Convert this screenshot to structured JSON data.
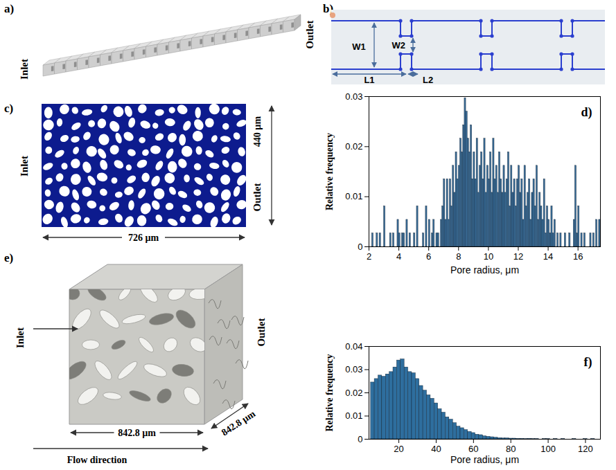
{
  "panels": {
    "a": {
      "letter": "a)",
      "inlet": "Inlet",
      "outlet": "Outlet"
    },
    "b": {
      "letter": "b)",
      "labels": [
        "W1",
        "W2",
        "L1",
        "L2"
      ]
    },
    "c": {
      "letter": "c)",
      "inlet": "Inlet",
      "outlet": "Outlet",
      "height_label": "440 µm",
      "width_label": "726 µm"
    },
    "d": {
      "letter": "d)"
    },
    "e": {
      "letter": "e)",
      "inlet": "Inlet",
      "outlet": "Outlet",
      "width_label": "842.8 µm",
      "depth_label": "842.8 µm",
      "flow": "Flow direction"
    },
    "f": {
      "letter": "f)"
    }
  },
  "chart_data": [
    {
      "type": "histogram",
      "xlabel": "Pore radius, μm",
      "ylabel": "Relative frequency",
      "color": "#3a6e9a",
      "xlim": [
        2,
        17.5
      ],
      "ylim": [
        0,
        0.03
      ],
      "xticks": [
        2,
        4,
        6,
        8,
        10,
        12,
        14,
        16
      ],
      "yticks": [
        0,
        0.01,
        0.02,
        0.03
      ],
      "bins": [
        2,
        2.1,
        2.2,
        2.3,
        2.4,
        2.5,
        2.6,
        2.7,
        2.8,
        2.9,
        3,
        3.1,
        3.2,
        3.3,
        3.4,
        3.5,
        3.6,
        3.7,
        3.8,
        3.9,
        4,
        4.1,
        4.2,
        4.3,
        4.4,
        4.5,
        4.6,
        4.7,
        4.8,
        4.9,
        5,
        5.1,
        5.2,
        5.3,
        5.4,
        5.5,
        5.6,
        5.7,
        5.8,
        5.9,
        6,
        6.1,
        6.2,
        6.3,
        6.4,
        6.5,
        6.6,
        6.7,
        6.8,
        6.9,
        7,
        7.1,
        7.2,
        7.3,
        7.4,
        7.5,
        7.6,
        7.7,
        7.8,
        7.9,
        8,
        8.1,
        8.2,
        8.3,
        8.4,
        8.5,
        8.6,
        8.7,
        8.8,
        8.9,
        9,
        9.1,
        9.2,
        9.3,
        9.4,
        9.5,
        9.6,
        9.7,
        9.8,
        9.9,
        10,
        10.1,
        10.2,
        10.3,
        10.4,
        10.5,
        10.6,
        10.7,
        10.8,
        10.9,
        11,
        11.1,
        11.2,
        11.3,
        11.4,
        11.5,
        11.6,
        11.7,
        11.8,
        11.9,
        12,
        12.1,
        12.2,
        12.3,
        12.4,
        12.5,
        12.6,
        12.7,
        12.8,
        12.9,
        13,
        13.1,
        13.2,
        13.3,
        13.4,
        13.5,
        13.6,
        13.7,
        13.8,
        13.9,
        14,
        14.1,
        14.2,
        14.3,
        14.4,
        14.5,
        14.6,
        14.7,
        14.8,
        14.9,
        15,
        15.1,
        15.2,
        15.3,
        15.4,
        15.5,
        15.6,
        15.7,
        15.8,
        15.9,
        16,
        16.1,
        16.2,
        16.3,
        16.4,
        16.5,
        16.6,
        16.7,
        16.8,
        16.9,
        17,
        17.1,
        17.2,
        17.3,
        17.4,
        17.5
      ],
      "values": [
        0,
        0,
        0.0027,
        0,
        0,
        0.0027,
        0,
        0.0027,
        0,
        0,
        0.0081,
        0,
        0,
        0,
        0.0027,
        0,
        0.0027,
        0,
        0,
        0.0054,
        0.0027,
        0,
        0.0027,
        0.0027,
        0,
        0.0054,
        0,
        0.0027,
        0,
        0,
        0.0027,
        0,
        0.0081,
        0,
        0,
        0,
        0.0027,
        0,
        0.0081,
        0,
        0.0054,
        0,
        0.0027,
        0.0054,
        0,
        0.0027,
        0.0027,
        0,
        0.0054,
        0.0081,
        0.0135,
        0.0054,
        0.0135,
        0.0054,
        0.0135,
        0.0081,
        0.0162,
        0.0108,
        0.0189,
        0.0135,
        0.0162,
        0.0216,
        0.0189,
        0.0243,
        0.0297,
        0.027,
        0.0216,
        0.0189,
        0.0243,
        0.0135,
        0.0189,
        0.0135,
        0.0216,
        0.0108,
        0.0162,
        0.0189,
        0.0135,
        0.0216,
        0.0108,
        0.0162,
        0.0135,
        0.0189,
        0.0108,
        0.0216,
        0.0135,
        0.0162,
        0.0108,
        0.0189,
        0.0135,
        0.0108,
        0.0162,
        0.0108,
        0.0135,
        0.0189,
        0.0081,
        0.0162,
        0.0108,
        0.0135,
        0.0081,
        0.0135,
        0.0162,
        0.0108,
        0.0135,
        0.0054,
        0.0162,
        0.0081,
        0.0108,
        0.0135,
        0.0054,
        0.0108,
        0.0135,
        0.0081,
        0.0162,
        0.0054,
        0.0108,
        0.0081,
        0.0054,
        0.0135,
        0.0027,
        0.0081,
        0.0054,
        0.0027,
        0.0081,
        0.0027,
        0.0054,
        0,
        0.0027,
        0,
        0.0027,
        0,
        0,
        0.0027,
        0,
        0,
        0.0027,
        0,
        0,
        0.0054,
        0.0162,
        0.0027,
        0.0081,
        0,
        0.0027,
        0,
        0.0027,
        0,
        0,
        0,
        0.0027,
        0,
        0.0027,
        0,
        0.0054,
        0,
        0.0054
      ]
    },
    {
      "type": "histogram",
      "xlabel": "Pore radius, μm",
      "ylabel": "Relative frequency",
      "color": "#2e6e9e",
      "xlim": [
        4,
        128
      ],
      "ylim": [
        0,
        0.04
      ],
      "xticks": [
        20,
        40,
        60,
        80,
        100,
        120
      ],
      "yticks": [
        0,
        0.01,
        0.02,
        0.03,
        0.04
      ],
      "bins": [
        5,
        7,
        9,
        11,
        13,
        15,
        17,
        19,
        21,
        23,
        25,
        27,
        29,
        31,
        33,
        35,
        37,
        39,
        41,
        43,
        45,
        47,
        49,
        51,
        53,
        55,
        57,
        59,
        61,
        63,
        65,
        67,
        69,
        71,
        73,
        75,
        77,
        79,
        81,
        83,
        85,
        87,
        89,
        91,
        93,
        95,
        97,
        99,
        101,
        103,
        105,
        107,
        109,
        111,
        113,
        115,
        117,
        119,
        121,
        123,
        125
      ],
      "values": [
        0.0245,
        0.026,
        0.0275,
        0.027,
        0.028,
        0.029,
        0.031,
        0.034,
        0.0345,
        0.031,
        0.029,
        0.0285,
        0.026,
        0.023,
        0.021,
        0.019,
        0.0175,
        0.0155,
        0.013,
        0.0115,
        0.0095,
        0.0085,
        0.007,
        0.0055,
        0.0048,
        0.004,
        0.0032,
        0.0027,
        0.002,
        0.0018,
        0.0013,
        0.0011,
        0.0009,
        0.0007,
        0.0005,
        0.0004,
        0.0004,
        0.0003,
        0.0003,
        0.0002,
        0.0002,
        0.0001,
        0.0002,
        0.0001,
        0.0001,
        0,
        0.0001,
        0.0001,
        0,
        0.0001,
        0,
        0.0001,
        0,
        0,
        0.0001,
        0,
        0,
        0.0001,
        0,
        0.0001
      ]
    }
  ]
}
